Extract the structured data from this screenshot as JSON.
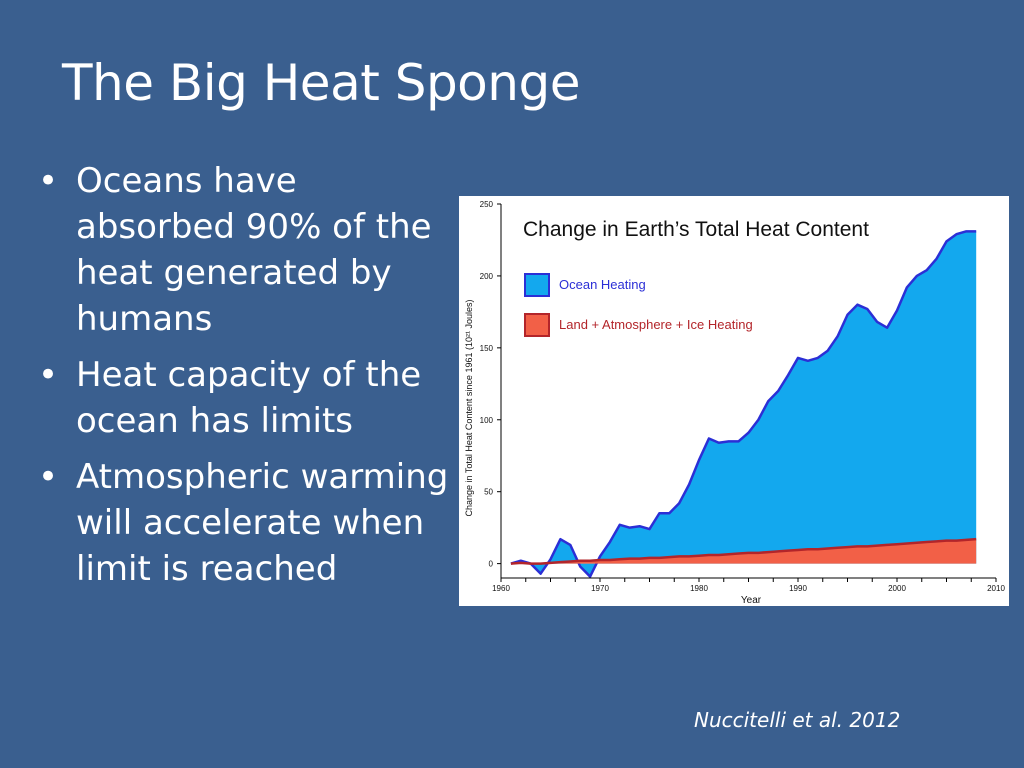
{
  "slide": {
    "title": "The Big Heat Sponge",
    "bullets": [
      "Oceans have absorbed 90% of the heat generated by humans",
      "Heat capacity of the ocean has limits",
      "Atmospheric warming will accelerate when limit is reached"
    ],
    "citation": "Nuccitelli et al. 2012",
    "background_color": "#3a5f8f"
  },
  "chart_data": {
    "type": "area",
    "title": "Change in Earth’s Total Heat Content",
    "xlabel": "Year",
    "ylabel": "Change in Total Heat Content since 1961 (10²¹ Joules)",
    "xlim": [
      1960,
      2010
    ],
    "ylim": [
      -10,
      250
    ],
    "xticks": [
      1960,
      1970,
      1980,
      1990,
      2000,
      2010
    ],
    "yticks": [
      0,
      50,
      100,
      150,
      200,
      250
    ],
    "legend_position": "top-left",
    "grid": false,
    "series": [
      {
        "name": "Ocean Heating",
        "color": "#13a8ee",
        "line_color": "#2b2fd6",
        "x": [
          1961,
          1962,
          1963,
          1964,
          1965,
          1966,
          1967,
          1968,
          1969,
          1970,
          1971,
          1972,
          1973,
          1974,
          1975,
          1976,
          1977,
          1978,
          1979,
          1980,
          1981,
          1982,
          1983,
          1984,
          1985,
          1986,
          1987,
          1988,
          1989,
          1990,
          1991,
          1992,
          1993,
          1994,
          1995,
          1996,
          1997,
          1998,
          1999,
          2000,
          2001,
          2002,
          2003,
          2004,
          2005,
          2006,
          2007,
          2008
        ],
        "values": [
          0,
          2,
          0,
          -7,
          3,
          17,
          13,
          -2,
          -9,
          5,
          15,
          27,
          25,
          26,
          24,
          35,
          35,
          42,
          55,
          72,
          87,
          84,
          85,
          85,
          91,
          100,
          113,
          120,
          131,
          143,
          141,
          143,
          148,
          158,
          173,
          180,
          177,
          168,
          164,
          176,
          192,
          200,
          204,
          212,
          224,
          229,
          231,
          231
        ]
      },
      {
        "name": "Land + Atmosphere + Ice Heating",
        "color": "#f26047",
        "line_color": "#b3252a",
        "x": [
          1961,
          1962,
          1963,
          1964,
          1965,
          1966,
          1967,
          1968,
          1969,
          1970,
          1971,
          1972,
          1973,
          1974,
          1975,
          1976,
          1977,
          1978,
          1979,
          1980,
          1981,
          1982,
          1983,
          1984,
          1985,
          1986,
          1987,
          1988,
          1989,
          1990,
          1991,
          1992,
          1993,
          1994,
          1995,
          1996,
          1997,
          1998,
          1999,
          2000,
          2001,
          2002,
          2003,
          2004,
          2005,
          2006,
          2007,
          2008
        ],
        "values": [
          0,
          0.5,
          0,
          0,
          0.5,
          1,
          1.5,
          2,
          2,
          2.5,
          2.5,
          3,
          3.5,
          3.5,
          4,
          4,
          4.5,
          5,
          5,
          5.5,
          6,
          6,
          6.5,
          7,
          7.5,
          7.5,
          8,
          8.5,
          9,
          9.5,
          10,
          10,
          10.5,
          11,
          11.5,
          12,
          12,
          12.5,
          13,
          13.5,
          14,
          14.5,
          15,
          15.5,
          16,
          16,
          16.5,
          17
        ]
      }
    ]
  }
}
